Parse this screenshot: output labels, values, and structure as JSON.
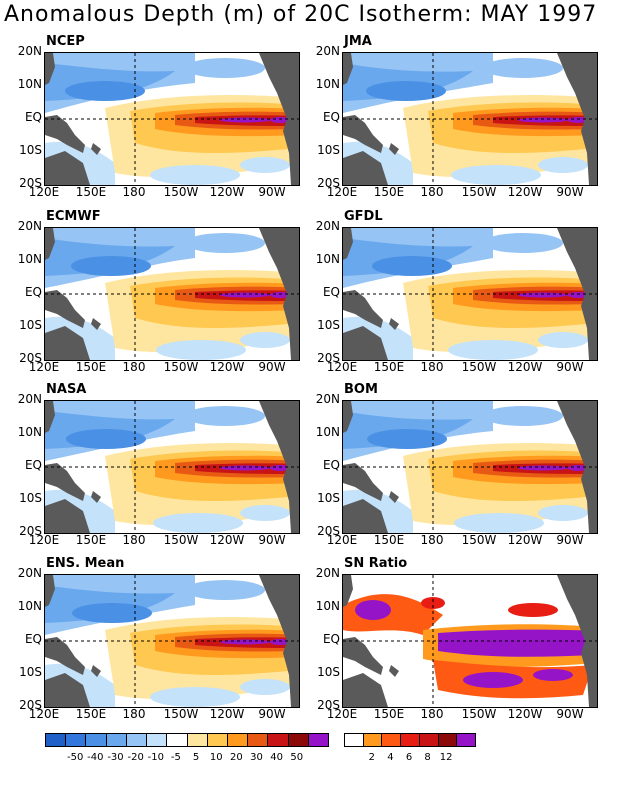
{
  "title": "Anomalous Depth (m) of 20C Isotherm: MAY 1997",
  "lat_labels": [
    "20N",
    "10N",
    "EQ",
    "10S",
    "20S"
  ],
  "lon_labels": [
    "120E",
    "150E",
    "180",
    "150W",
    "120W",
    "90W"
  ],
  "panels": [
    {
      "name": "NCEP",
      "kind": "anomaly"
    },
    {
      "name": "JMA",
      "kind": "anomaly"
    },
    {
      "name": "ECMWF",
      "kind": "anomaly"
    },
    {
      "name": "GFDL",
      "kind": "anomaly"
    },
    {
      "name": "NASA",
      "kind": "anomaly"
    },
    {
      "name": "BOM",
      "kind": "anomaly"
    },
    {
      "name": "ENS. Mean",
      "kind": "anomaly"
    },
    {
      "name": "SN Ratio",
      "kind": "snr"
    }
  ],
  "anomaly_colorbar": {
    "colors": [
      "#1e5fc8",
      "#3278dc",
      "#4a90e4",
      "#6aa8ee",
      "#96c4f4",
      "#c4e2fa",
      "#ffffff",
      "#ffe6a0",
      "#ffc850",
      "#ff9a1e",
      "#e85a14",
      "#c81414",
      "#8c0a0a",
      "#9614c8"
    ],
    "ticks": [
      "-50",
      "-40",
      "-30",
      "-20",
      "-10",
      "-5",
      "5",
      "10",
      "20",
      "30",
      "40",
      "50"
    ]
  },
  "snr_colorbar": {
    "colors": [
      "#ffffff",
      "#ff9a1e",
      "#ff5a14",
      "#e81e14",
      "#c81414",
      "#8c0a0a",
      "#9614c8"
    ],
    "ticks": [
      "2",
      "4",
      "6",
      "8",
      "12"
    ]
  },
  "colors": {
    "land": "#5a5a5a",
    "dashed_line": "#000000"
  }
}
